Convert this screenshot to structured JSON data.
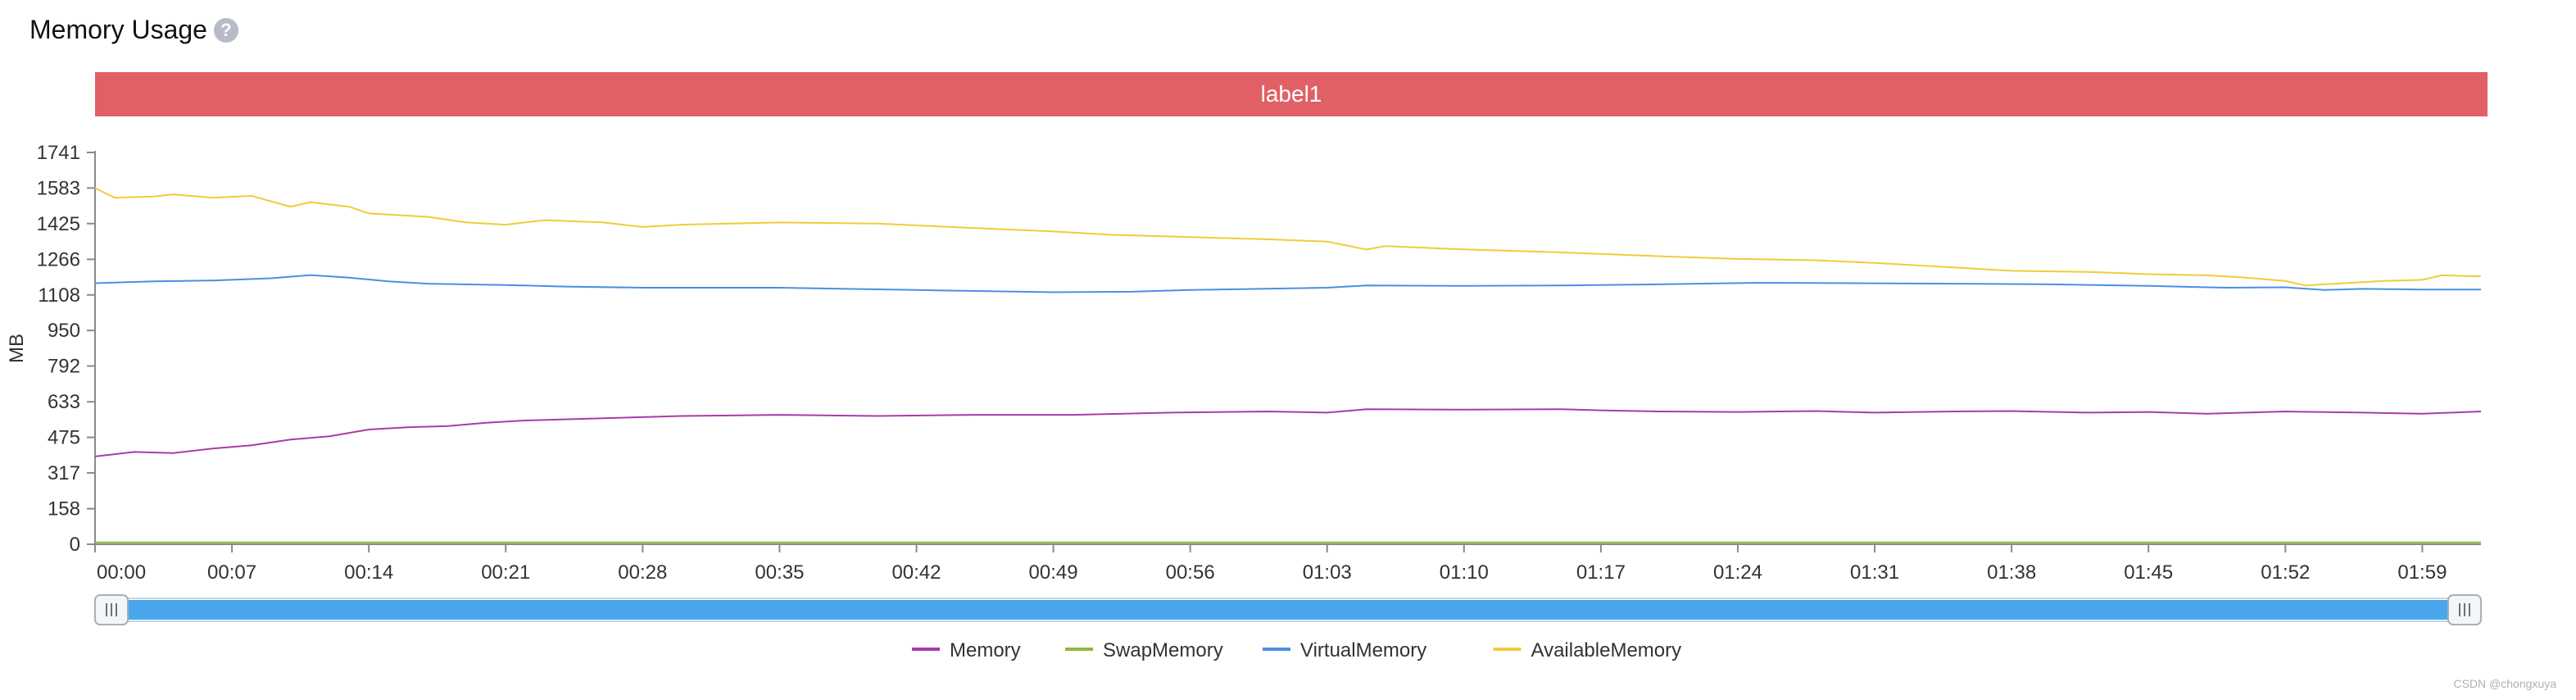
{
  "header": {
    "title": "Memory Usage",
    "help_icon": "?"
  },
  "banner": {
    "label": "label1"
  },
  "watermark": "CSDN @chongxuya",
  "chart_data": {
    "type": "line",
    "title": "Memory Usage",
    "banner_label": "label1",
    "ylabel": "MB",
    "xlabel": "",
    "ylim": [
      0,
      1741
    ],
    "y_ticks": [
      0,
      158,
      317,
      475,
      633,
      792,
      950,
      1108,
      1266,
      1425,
      1583,
      1741
    ],
    "x_tick_labels": [
      "00:00",
      "00:07",
      "00:14",
      "00:21",
      "00:28",
      "00:35",
      "00:42",
      "00:49",
      "00:56",
      "01:03",
      "01:10",
      "01:17",
      "01:24",
      "01:31",
      "01:38",
      "01:45",
      "01:52",
      "01:59"
    ],
    "x_tick_seconds": [
      0,
      7,
      14,
      21,
      28,
      35,
      42,
      49,
      56,
      63,
      70,
      77,
      84,
      91,
      98,
      105,
      112,
      119
    ],
    "x_range": [
      0,
      122
    ],
    "grid": false,
    "legend_position": "bottom-center",
    "series": [
      {
        "name": "Memory",
        "color": "#a83ca8",
        "points": [
          [
            0,
            390
          ],
          [
            2,
            410
          ],
          [
            4,
            405
          ],
          [
            6,
            425
          ],
          [
            8,
            440
          ],
          [
            10,
            465
          ],
          [
            12,
            480
          ],
          [
            14,
            510
          ],
          [
            16,
            520
          ],
          [
            18,
            525
          ],
          [
            20,
            540
          ],
          [
            22,
            550
          ],
          [
            24,
            555
          ],
          [
            26,
            560
          ],
          [
            28,
            565
          ],
          [
            30,
            570
          ],
          [
            35,
            575
          ],
          [
            40,
            570
          ],
          [
            45,
            575
          ],
          [
            50,
            575
          ],
          [
            55,
            585
          ],
          [
            60,
            590
          ],
          [
            63,
            585
          ],
          [
            65,
            600
          ],
          [
            70,
            598
          ],
          [
            75,
            600
          ],
          [
            77,
            595
          ],
          [
            80,
            590
          ],
          [
            84,
            588
          ],
          [
            88,
            592
          ],
          [
            91,
            585
          ],
          [
            95,
            590
          ],
          [
            98,
            592
          ],
          [
            102,
            585
          ],
          [
            105,
            588
          ],
          [
            108,
            580
          ],
          [
            112,
            590
          ],
          [
            116,
            585
          ],
          [
            119,
            580
          ],
          [
            122,
            590
          ]
        ]
      },
      {
        "name": "SwapMemory",
        "color": "#8db83a",
        "points": [
          [
            0,
            8
          ],
          [
            122,
            8
          ]
        ]
      },
      {
        "name": "VirtualMemory",
        "color": "#4a90e2",
        "points": [
          [
            0,
            1160
          ],
          [
            3,
            1168
          ],
          [
            6,
            1172
          ],
          [
            9,
            1182
          ],
          [
            11,
            1196
          ],
          [
            13,
            1185
          ],
          [
            15,
            1168
          ],
          [
            17,
            1158
          ],
          [
            21,
            1152
          ],
          [
            24,
            1145
          ],
          [
            28,
            1140
          ],
          [
            35,
            1140
          ],
          [
            42,
            1130
          ],
          [
            49,
            1120
          ],
          [
            53,
            1122
          ],
          [
            56,
            1130
          ],
          [
            63,
            1140
          ],
          [
            65,
            1150
          ],
          [
            70,
            1148
          ],
          [
            75,
            1150
          ],
          [
            80,
            1155
          ],
          [
            85,
            1162
          ],
          [
            90,
            1160
          ],
          [
            95,
            1158
          ],
          [
            100,
            1155
          ],
          [
            105,
            1148
          ],
          [
            109,
            1140
          ],
          [
            112,
            1142
          ],
          [
            114,
            1130
          ],
          [
            116,
            1135
          ],
          [
            119,
            1132
          ],
          [
            122,
            1132
          ]
        ]
      },
      {
        "name": "AvailableMemory",
        "color": "#f0cc3a",
        "points": [
          [
            0,
            1583
          ],
          [
            1,
            1540
          ],
          [
            3,
            1545
          ],
          [
            4,
            1555
          ],
          [
            6,
            1540
          ],
          [
            8,
            1548
          ],
          [
            10,
            1500
          ],
          [
            11,
            1520
          ],
          [
            13,
            1500
          ],
          [
            14,
            1470
          ],
          [
            17,
            1455
          ],
          [
            19,
            1430
          ],
          [
            21,
            1420
          ],
          [
            23,
            1440
          ],
          [
            26,
            1430
          ],
          [
            28,
            1410
          ],
          [
            30,
            1420
          ],
          [
            35,
            1430
          ],
          [
            40,
            1425
          ],
          [
            45,
            1405
          ],
          [
            49,
            1390
          ],
          [
            52,
            1375
          ],
          [
            56,
            1365
          ],
          [
            60,
            1355
          ],
          [
            63,
            1345
          ],
          [
            65,
            1310
          ],
          [
            66,
            1325
          ],
          [
            70,
            1310
          ],
          [
            74,
            1300
          ],
          [
            77,
            1290
          ],
          [
            80,
            1280
          ],
          [
            84,
            1268
          ],
          [
            88,
            1262
          ],
          [
            91,
            1250
          ],
          [
            95,
            1230
          ],
          [
            98,
            1215
          ],
          [
            102,
            1210
          ],
          [
            105,
            1200
          ],
          [
            108,
            1195
          ],
          [
            110,
            1185
          ],
          [
            112,
            1170
          ],
          [
            113,
            1150
          ],
          [
            115,
            1160
          ],
          [
            117,
            1170
          ],
          [
            119,
            1175
          ],
          [
            120,
            1195
          ],
          [
            122,
            1190
          ]
        ]
      }
    ]
  }
}
